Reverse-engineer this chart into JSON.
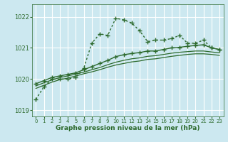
{
  "bg_color": "#cce8f0",
  "grid_color": "#ffffff",
  "line_color": "#2d6a2d",
  "xlabel": "Graphe pression niveau de la mer (hPa)",
  "ylim": [
    1018.8,
    1022.4
  ],
  "xlim": [
    -0.5,
    23.5
  ],
  "yticks": [
    1019,
    1020,
    1021,
    1022
  ],
  "xticks": [
    0,
    1,
    2,
    3,
    4,
    5,
    6,
    7,
    8,
    9,
    10,
    11,
    12,
    13,
    14,
    15,
    16,
    17,
    18,
    19,
    20,
    21,
    22,
    23
  ],
  "series": [
    {
      "x": [
        0,
        1,
        2,
        3,
        4,
        5,
        6,
        7,
        8,
        9,
        10,
        11,
        12,
        13,
        14,
        15,
        16,
        17,
        18,
        19,
        20,
        21,
        22,
        23
      ],
      "y": [
        1019.35,
        1019.75,
        1020.0,
        1020.0,
        1020.0,
        1020.05,
        1020.35,
        1021.15,
        1021.45,
        1021.4,
        1021.95,
        1021.9,
        1021.8,
        1021.55,
        1021.2,
        1021.25,
        1021.25,
        1021.3,
        1021.4,
        1021.15,
        1021.15,
        1021.25,
        1021.0,
        1020.95
      ],
      "linestyle": "dotted",
      "marker": "+",
      "linewidth": 1.0,
      "markersize": 4
    },
    {
      "x": [
        0,
        1,
        2,
        3,
        4,
        5,
        6,
        7,
        8,
        9,
        10,
        11,
        12,
        13,
        14,
        15,
        16,
        17,
        18,
        19,
        20,
        21,
        22,
        23
      ],
      "y": [
        1019.85,
        1019.95,
        1020.05,
        1020.1,
        1020.15,
        1020.2,
        1020.3,
        1020.4,
        1020.5,
        1020.6,
        1020.72,
        1020.78,
        1020.82,
        1020.85,
        1020.9,
        1020.9,
        1020.95,
        1021.0,
        1021.02,
        1021.05,
        1021.08,
        1021.1,
        1021.0,
        1020.95
      ],
      "linestyle": "solid",
      "marker": "+",
      "linewidth": 1.0,
      "markersize": 4
    },
    {
      "x": [
        0,
        1,
        2,
        3,
        4,
        5,
        6,
        7,
        8,
        9,
        10,
        11,
        12,
        13,
        14,
        15,
        16,
        17,
        18,
        19,
        20,
        21,
        22,
        23
      ],
      "y": [
        1019.78,
        1019.88,
        1019.97,
        1020.05,
        1020.1,
        1020.16,
        1020.22,
        1020.3,
        1020.37,
        1020.46,
        1020.54,
        1020.6,
        1020.65,
        1020.68,
        1020.73,
        1020.75,
        1020.79,
        1020.83,
        1020.86,
        1020.88,
        1020.9,
        1020.9,
        1020.87,
        1020.84
      ],
      "linestyle": "solid",
      "marker": null,
      "linewidth": 0.9,
      "markersize": 0
    },
    {
      "x": [
        0,
        1,
        2,
        3,
        4,
        5,
        6,
        7,
        8,
        9,
        10,
        11,
        12,
        13,
        14,
        15,
        16,
        17,
        18,
        19,
        20,
        21,
        22,
        23
      ],
      "y": [
        1019.7,
        1019.8,
        1019.9,
        1019.98,
        1020.03,
        1020.1,
        1020.17,
        1020.23,
        1020.3,
        1020.38,
        1020.45,
        1020.5,
        1020.55,
        1020.58,
        1020.63,
        1020.65,
        1020.69,
        1020.73,
        1020.76,
        1020.79,
        1020.81,
        1020.81,
        1020.79,
        1020.76
      ],
      "linestyle": "solid",
      "marker": null,
      "linewidth": 0.9,
      "markersize": 0
    }
  ]
}
